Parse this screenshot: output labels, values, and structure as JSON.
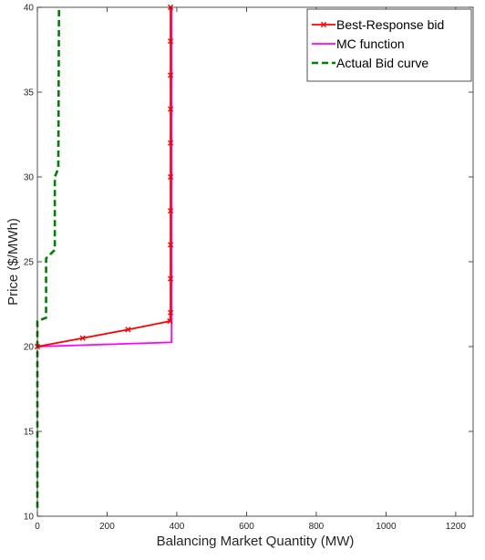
{
  "chart_data": {
    "type": "line",
    "title": "",
    "xlabel": "Balancing Market Quantity (MW)",
    "ylabel": "Price ($/MWh)",
    "xlim": [
      0,
      1250
    ],
    "ylim": [
      10,
      40
    ],
    "xticks": [
      0,
      200,
      400,
      600,
      800,
      1000,
      1200
    ],
    "yticks": [
      10,
      15,
      20,
      25,
      30,
      35,
      40
    ],
    "xtick_labels": [
      "0",
      "200",
      "400",
      "600",
      "800",
      "1000",
      "1200"
    ],
    "ytick_labels": [
      "10",
      "15",
      "20",
      "25",
      "30",
      "35",
      "40"
    ],
    "grid": false,
    "legend_position": "top-right",
    "series": [
      {
        "name": "Best-Response bid",
        "color": "#ff0000",
        "style": "solid",
        "marker": "x",
        "points": [
          [
            0,
            20.0
          ],
          [
            130,
            20.5
          ],
          [
            260,
            21.0
          ],
          [
            380,
            21.5
          ],
          [
            382,
            22
          ],
          [
            382,
            24
          ],
          [
            382,
            26
          ],
          [
            382,
            28
          ],
          [
            382,
            30
          ],
          [
            382,
            32
          ],
          [
            382,
            34
          ],
          [
            382,
            36
          ],
          [
            382,
            38
          ],
          [
            382,
            40
          ]
        ]
      },
      {
        "name": "MC function",
        "color": "#ff00ff",
        "style": "solid",
        "marker": "none",
        "points": [
          [
            0,
            20.0
          ],
          [
            385,
            20.25
          ],
          [
            385,
            40
          ]
        ]
      },
      {
        "name": "Actual Bid curve",
        "color": "#008000",
        "style": "dashed",
        "marker": "none",
        "points": [
          [
            0,
            10.5
          ],
          [
            0,
            21.5
          ],
          [
            25,
            21.7
          ],
          [
            25,
            25.2
          ],
          [
            50,
            25.7
          ],
          [
            50,
            30.0
          ],
          [
            60,
            30.5
          ],
          [
            62,
            40
          ]
        ]
      }
    ]
  }
}
